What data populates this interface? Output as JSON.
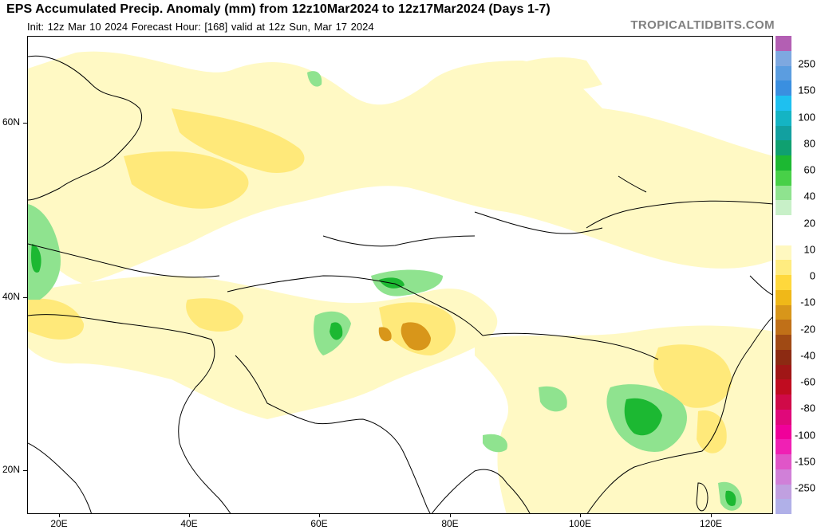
{
  "header": {
    "title": "EPS Accumulated Precip. Anomaly (mm) from 12z10Mar2024 to 12z17Mar2024 (Days 1-7)",
    "subtitle": "Init: 12z Mar 10 2024   Forecast Hour: [168]   valid at 12z Sun, Mar 17 2024",
    "brand": "TROPICALTIDBITS.COM"
  },
  "axes": {
    "lat_labels": [
      "60N",
      "40N",
      "20N"
    ],
    "lon_labels": [
      "20E",
      "40E",
      "60E",
      "80E",
      "100E",
      "120E"
    ]
  },
  "colorbar": {
    "labels": [
      "250",
      "150",
      "100",
      "80",
      "60",
      "40",
      "20",
      "10",
      "0",
      "-10",
      "-20",
      "-40",
      "-60",
      "-80",
      "-100",
      "-150",
      "-250"
    ],
    "colors": [
      "#b35fb3",
      "#7ea8e0",
      "#5b9de0",
      "#3a8fe0",
      "#1ec0f0",
      "#14b4c4",
      "#12a0a0",
      "#0fa070",
      "#1cb832",
      "#48d048",
      "#8fe38f",
      "#c8f0c8",
      "#ffffff",
      "#ffffff",
      "#fff8c0",
      "#ffec80",
      "#ffd83c",
      "#f0b818",
      "#d8961a",
      "#c07018",
      "#a04a14",
      "#8c2a12",
      "#a01616",
      "#c00c20",
      "#d00a48",
      "#e0087a",
      "#f0009a",
      "#f020b4",
      "#e055c8",
      "#d080d8",
      "#c0a0e0",
      "#b0b0e8"
    ]
  }
}
